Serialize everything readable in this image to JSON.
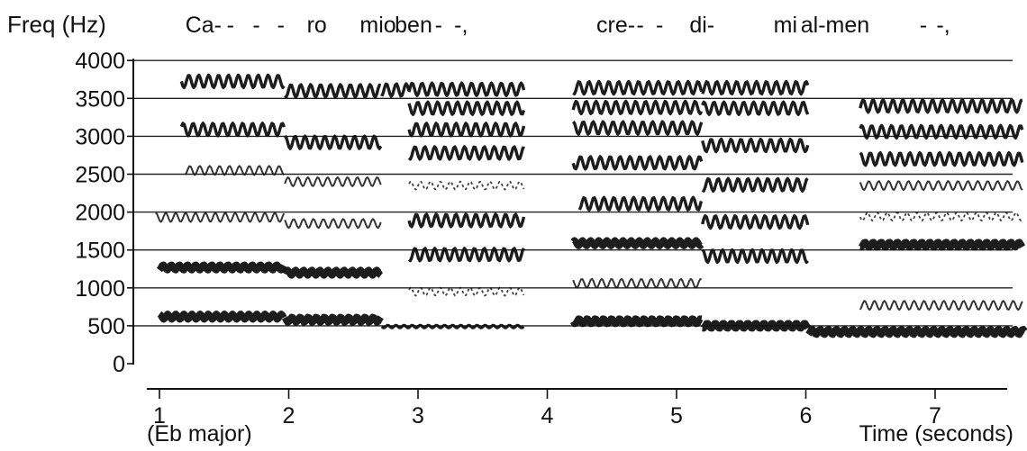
{
  "chart_data": {
    "type": "spectrogram",
    "ylabel": "Freq (Hz)",
    "xlabel": "Time (seconds)",
    "key_label": "(Eb major)",
    "x_ticks": [
      "1",
      "2",
      "3",
      "4",
      "5",
      "6",
      "7"
    ],
    "y_ticks": [
      "4000",
      "3500",
      "3000",
      "2500",
      "2000",
      "1500",
      "1000",
      "500",
      "0"
    ],
    "xlim": [
      1,
      7.8
    ],
    "ylim": [
      0,
      4000
    ],
    "grid": "horizontal",
    "lyrics": [
      {
        "text": "Ca-",
        "t": 1.2
      },
      {
        "text": "-",
        "t": 1.52
      },
      {
        "text": "-",
        "t": 1.72
      },
      {
        "text": "-",
        "t": 1.91
      },
      {
        "text": "ro",
        "t": 2.14
      },
      {
        "text": "mio",
        "t": 2.55
      },
      {
        "text": "ben",
        "t": 2.82
      },
      {
        "text": "-",
        "t": 3.13
      },
      {
        "text": "-,",
        "t": 3.28
      },
      {
        "text": "cre-",
        "t": 4.38
      },
      {
        "text": "-",
        "t": 4.69
      },
      {
        "text": "-",
        "t": 4.84
      },
      {
        "text": "di-",
        "t": 5.1
      },
      {
        "text": "mi",
        "t": 5.75
      },
      {
        "text": "al-men",
        "t": 5.96
      },
      {
        "text": "-",
        "t": 6.88
      },
      {
        "text": "-,",
        "t": 7.01
      }
    ],
    "harmonic_bands": [
      {
        "t0": 1.17,
        "t1": 1.97,
        "f": 3725,
        "kind": "vib"
      },
      {
        "t0": 1.97,
        "t1": 2.72,
        "f": 3600,
        "kind": "vib"
      },
      {
        "t0": 2.72,
        "t1": 2.93,
        "f": 3610,
        "kind": "vib"
      },
      {
        "t0": 2.93,
        "t1": 3.82,
        "f": 3620,
        "kind": "vib"
      },
      {
        "t0": 1.17,
        "t1": 1.97,
        "f": 3090,
        "kind": "vib"
      },
      {
        "t0": 1.97,
        "t1": 2.72,
        "f": 2920,
        "kind": "vib"
      },
      {
        "t0": 2.93,
        "t1": 3.82,
        "f": 3370,
        "kind": "vib"
      },
      {
        "t0": 2.93,
        "t1": 3.82,
        "f": 3090,
        "kind": "vib"
      },
      {
        "t0": 2.93,
        "t1": 3.82,
        "f": 2780,
        "kind": "vib"
      },
      {
        "t0": 1.2,
        "t1": 1.97,
        "f": 2550,
        "kind": "light"
      },
      {
        "t0": 1.97,
        "t1": 2.72,
        "f": 2400,
        "kind": "light"
      },
      {
        "t0": 2.93,
        "t1": 3.82,
        "f": 2350,
        "kind": "dots"
      },
      {
        "t0": 0.97,
        "t1": 1.97,
        "f": 1930,
        "kind": "light"
      },
      {
        "t0": 1.97,
        "t1": 2.72,
        "f": 1850,
        "kind": "light"
      },
      {
        "t0": 2.93,
        "t1": 3.82,
        "f": 1890,
        "kind": "vib"
      },
      {
        "t0": 2.93,
        "t1": 3.82,
        "f": 1440,
        "kind": "vib"
      },
      {
        "t0": 1.0,
        "t1": 1.97,
        "f": 1270,
        "kind": "thick"
      },
      {
        "t0": 1.97,
        "t1": 2.72,
        "f": 1200,
        "kind": "thick"
      },
      {
        "t0": 2.93,
        "t1": 3.82,
        "f": 950,
        "kind": "dots"
      },
      {
        "t0": 1.0,
        "t1": 1.97,
        "f": 620,
        "kind": "thick"
      },
      {
        "t0": 1.97,
        "t1": 2.72,
        "f": 580,
        "kind": "thick"
      },
      {
        "t0": 2.72,
        "t1": 3.82,
        "f": 490,
        "kind": "thin"
      },
      {
        "t0": 4.2,
        "t1": 5.2,
        "f": 3640,
        "kind": "vib"
      },
      {
        "t0": 5.2,
        "t1": 6.02,
        "f": 3640,
        "kind": "vib"
      },
      {
        "t0": 4.2,
        "t1": 5.2,
        "f": 3380,
        "kind": "vib"
      },
      {
        "t0": 5.2,
        "t1": 6.02,
        "f": 3370,
        "kind": "vib"
      },
      {
        "t0": 4.2,
        "t1": 5.2,
        "f": 3110,
        "kind": "vib"
      },
      {
        "t0": 5.2,
        "t1": 6.02,
        "f": 2880,
        "kind": "vib"
      },
      {
        "t0": 4.2,
        "t1": 5.2,
        "f": 2650,
        "kind": "vib"
      },
      {
        "t0": 5.2,
        "t1": 6.02,
        "f": 2360,
        "kind": "vib"
      },
      {
        "t0": 4.25,
        "t1": 5.2,
        "f": 2110,
        "kind": "vib"
      },
      {
        "t0": 5.2,
        "t1": 6.02,
        "f": 1870,
        "kind": "vib"
      },
      {
        "t0": 4.2,
        "t1": 5.2,
        "f": 1590,
        "kind": "thick"
      },
      {
        "t0": 5.2,
        "t1": 6.02,
        "f": 1420,
        "kind": "vib"
      },
      {
        "t0": 4.2,
        "t1": 5.2,
        "f": 1060,
        "kind": "light"
      },
      {
        "t0": 4.2,
        "t1": 5.2,
        "f": 560,
        "kind": "thick"
      },
      {
        "t0": 5.2,
        "t1": 6.02,
        "f": 500,
        "kind": "thick"
      },
      {
        "t0": 6.02,
        "t1": 7.7,
        "f": 420,
        "kind": "thick"
      },
      {
        "t0": 6.42,
        "t1": 7.68,
        "f": 3400,
        "kind": "vib"
      },
      {
        "t0": 6.42,
        "t1": 7.68,
        "f": 3060,
        "kind": "vib"
      },
      {
        "t0": 6.42,
        "t1": 7.68,
        "f": 2700,
        "kind": "vib"
      },
      {
        "t0": 6.42,
        "t1": 7.68,
        "f": 2350,
        "kind": "light"
      },
      {
        "t0": 6.42,
        "t1": 7.68,
        "f": 1940,
        "kind": "dots"
      },
      {
        "t0": 6.42,
        "t1": 7.68,
        "f": 1570,
        "kind": "thick"
      },
      {
        "t0": 6.42,
        "t1": 7.68,
        "f": 770,
        "kind": "light"
      }
    ]
  }
}
